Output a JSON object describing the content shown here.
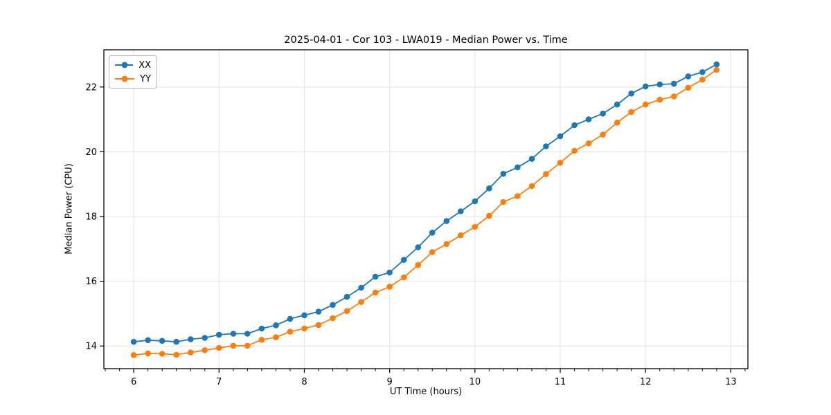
{
  "figure": {
    "title": "2025-04-01 - Cor 103 - LWA019 - Median Power vs. Time",
    "xlabel": "UT Time (hours)",
    "ylabel": "Median Power (CPU)"
  },
  "legend": {
    "items": [
      {
        "label": "XX",
        "color": "#1f77b4"
      },
      {
        "label": "YY",
        "color": "#ff7f0e"
      }
    ]
  },
  "chart_data": {
    "type": "line",
    "title": "2025-04-01 - Cor 103 - LWA019 - Median Power vs. Time",
    "xlabel": "UT Time (hours)",
    "ylabel": "Median Power (CPU)",
    "grid": true,
    "legend_position": "upper left",
    "xlim": [
      5.65,
      13.2
    ],
    "ylim": [
      13.3,
      23.15
    ],
    "xticks": [
      6,
      7,
      8,
      9,
      10,
      11,
      12,
      13
    ],
    "yticks": [
      14,
      16,
      18,
      20,
      22
    ],
    "x_minor_step": 0.1667,
    "x": [
      6.0,
      6.167,
      6.333,
      6.5,
      6.667,
      6.833,
      7.0,
      7.167,
      7.333,
      7.5,
      7.667,
      7.833,
      8.0,
      8.167,
      8.333,
      8.5,
      8.667,
      8.833,
      9.0,
      9.167,
      9.333,
      9.5,
      9.667,
      9.833,
      10.0,
      10.167,
      10.333,
      10.5,
      10.667,
      10.833,
      11.0,
      11.167,
      11.333,
      11.5,
      11.667,
      11.833,
      12.0,
      12.167,
      12.333,
      12.5,
      12.667,
      12.833
    ],
    "series": [
      {
        "name": "XX",
        "color": "#1f77b4",
        "marker": "circle",
        "values": [
          14.13,
          14.18,
          14.16,
          14.13,
          14.21,
          14.25,
          14.35,
          14.38,
          14.38,
          14.54,
          14.64,
          14.84,
          14.95,
          15.06,
          15.27,
          15.52,
          15.8,
          16.14,
          16.27,
          16.66,
          17.05,
          17.5,
          17.86,
          18.16,
          18.47,
          18.87,
          19.32,
          19.52,
          19.78,
          20.17,
          20.48,
          20.82,
          21.0,
          21.18,
          21.46,
          21.8,
          22.02,
          22.08,
          22.1,
          22.33,
          22.46,
          22.7
        ]
      },
      {
        "name": "YY",
        "color": "#ff7f0e",
        "marker": "circle",
        "values": [
          13.72,
          13.77,
          13.76,
          13.73,
          13.8,
          13.87,
          13.94,
          14.01,
          14.01,
          14.19,
          14.27,
          14.44,
          14.54,
          14.65,
          14.86,
          15.08,
          15.36,
          15.65,
          15.83,
          16.12,
          16.5,
          16.9,
          17.15,
          17.42,
          17.68,
          18.02,
          18.45,
          18.63,
          18.94,
          19.31,
          19.66,
          20.03,
          20.26,
          20.53,
          20.9,
          21.23,
          21.46,
          21.61,
          21.71,
          21.98,
          22.23,
          22.53
        ]
      }
    ]
  }
}
